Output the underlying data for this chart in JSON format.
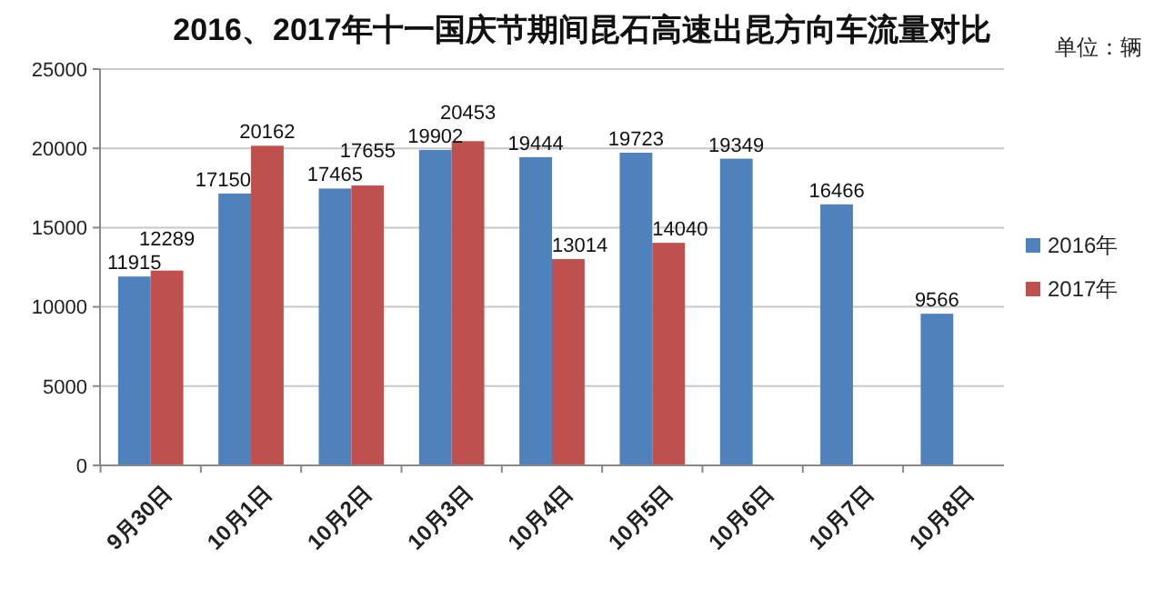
{
  "chart_data": {
    "type": "bar",
    "title": "2016、2017年十一国庆节期间昆石高速出昆方向车流量对比",
    "annotations": [
      "单位：辆"
    ],
    "categories": [
      "9月30日",
      "10月1日",
      "10月2日",
      "10月3日",
      "10月4日",
      "10月5日",
      "10月6日",
      "10月7日",
      "10月8日"
    ],
    "series": [
      {
        "name": "2016年",
        "color": "#4f81bd",
        "values": [
          11915,
          17150,
          17465,
          19902,
          19444,
          19723,
          19349,
          16466,
          9566
        ]
      },
      {
        "name": "2017年",
        "color": "#c0504d",
        "values": [
          12289,
          20162,
          17655,
          20453,
          13014,
          14040,
          null,
          null,
          null
        ]
      }
    ],
    "ylim": [
      0,
      25000
    ],
    "yticks": [
      0,
      5000,
      10000,
      15000,
      20000,
      25000
    ],
    "grid": "y",
    "legend": "right",
    "data_labels": true
  }
}
